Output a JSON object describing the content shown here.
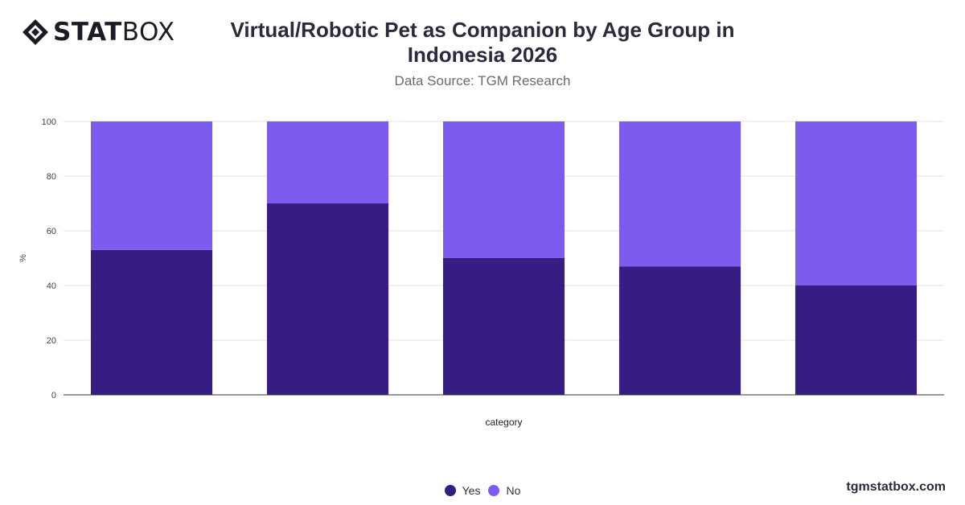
{
  "brand": {
    "logo_bold": "STAT",
    "logo_light": "BOX",
    "site": "tgmstatbox.com"
  },
  "header": {
    "title": "Virtual/Robotic Pet as Companion by Age Group in Indonesia 2026",
    "subtitle": "Data Source: TGM Research"
  },
  "chart_data": {
    "type": "bar",
    "stacked": true,
    "categories": [
      "",
      "",
      "",
      "",
      ""
    ],
    "series": [
      {
        "name": "Yes",
        "color": "#361d84",
        "values": [
          53,
          70,
          50,
          47,
          40
        ]
      },
      {
        "name": "No",
        "color": "#7b5cef",
        "values": [
          47,
          30,
          50,
          53,
          60
        ]
      }
    ],
    "xlabel": "category",
    "ylabel": "%",
    "ylim": [
      0,
      100
    ],
    "yticks": [
      "0",
      "20",
      "40",
      "60",
      "80",
      "100"
    ],
    "grid": true,
    "legend": "bottom-center"
  }
}
